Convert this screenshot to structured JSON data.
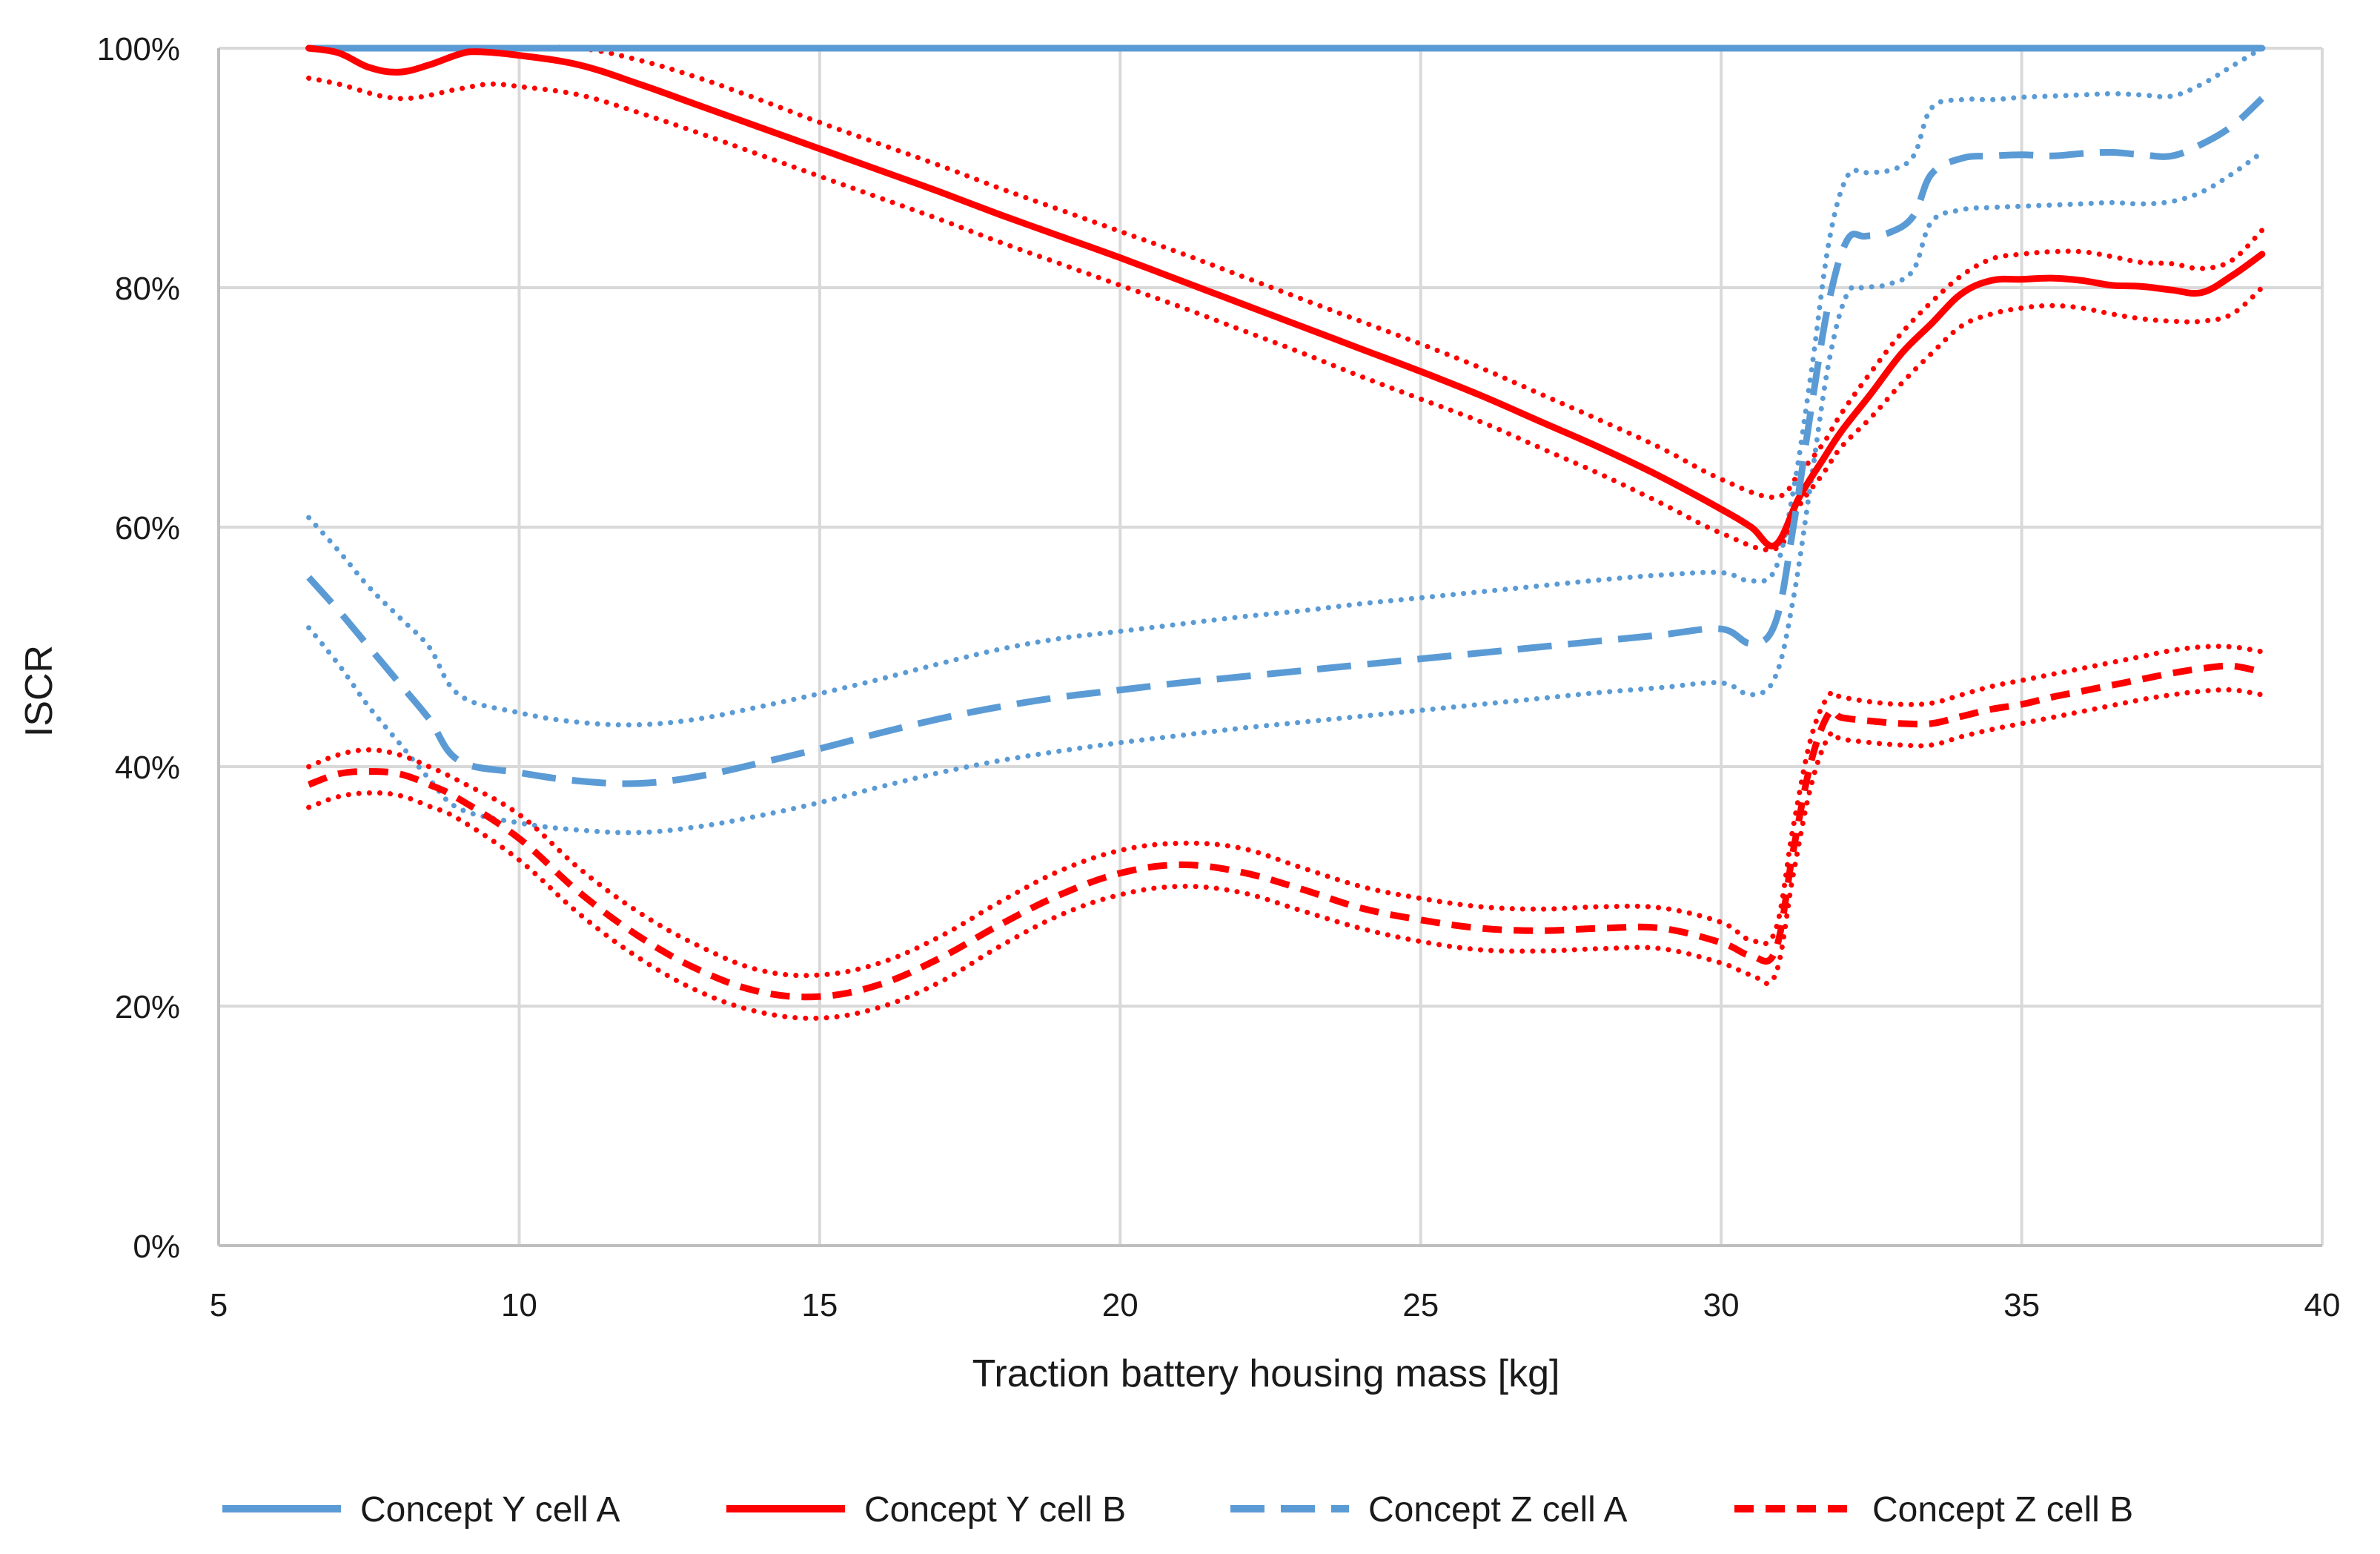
{
  "chart_data": {
    "type": "line",
    "title": "",
    "xlabel": "Traction battery housing mass [kg]",
    "ylabel": "ISCR",
    "xlim": [
      5,
      40
    ],
    "ylim": [
      0,
      100
    ],
    "x_ticks": [
      5,
      10,
      15,
      20,
      25,
      30,
      35,
      40
    ],
    "y_ticks": [
      0,
      20,
      40,
      60,
      80,
      100
    ],
    "x_tick_labels": [
      "5",
      "10",
      "15",
      "20",
      "25",
      "30",
      "35",
      "40"
    ],
    "y_tick_labels": [
      "0%",
      "20%",
      "40%",
      "60%",
      "80%",
      "100%"
    ],
    "grid": true,
    "legend_position": "bottom",
    "legend": [
      "Concept Y cell A",
      "Concept Y cell B",
      "Concept Z cell A",
      "Concept Z cell B"
    ],
    "colors": {
      "blue": "#5b9bd5",
      "red": "#ff0000",
      "grid": "#d9d9d9",
      "axis": "#bfbfbf"
    },
    "series": [
      {
        "name": "Concept Y cell A",
        "color": "#5b9bd5",
        "style": "solid",
        "legend": true,
        "x": [
          6.5,
          39
        ],
        "y": [
          100,
          100
        ]
      },
      {
        "name": "Concept Y cell B",
        "color": "#ff0000",
        "style": "solid",
        "legend": true,
        "x": [
          6.5,
          7,
          7.5,
          8,
          8.5,
          9,
          9.3,
          10,
          11,
          12,
          13,
          14,
          15,
          16,
          17,
          18,
          19,
          20,
          21,
          22,
          23,
          24,
          25,
          26,
          27,
          28,
          29,
          30,
          30.5,
          30.9,
          31.3,
          31.7,
          32,
          32.5,
          33,
          33.5,
          34,
          34.5,
          35,
          35.5,
          36,
          36.5,
          37,
          37.5,
          38,
          38.5,
          39
        ],
        "y": [
          100,
          99.6,
          98.4,
          98,
          98.6,
          99.5,
          99.7,
          99.4,
          98.6,
          97,
          95.2,
          93.4,
          91.6,
          89.8,
          88,
          86.1,
          84.3,
          82.5,
          80.6,
          78.7,
          76.8,
          74.9,
          73,
          71,
          68.8,
          66.6,
          64.2,
          61.5,
          60,
          58.5,
          62.5,
          65.7,
          68,
          71.2,
          74.5,
          77,
          79.5,
          80.6,
          80.7,
          80.8,
          80.6,
          80.2,
          80.1,
          79.8,
          79.6,
          81,
          82.8
        ]
      },
      {
        "name": "Concept Y cell B upper",
        "color": "#ff0000",
        "style": "dotted",
        "legend": false,
        "x": [
          6.5,
          8,
          9,
          10,
          11,
          12,
          13,
          14,
          15,
          16,
          17,
          18,
          19,
          20,
          21,
          22,
          23,
          24,
          25,
          26,
          27,
          28,
          29,
          30,
          30.9,
          31.3,
          31.7,
          32,
          32.5,
          33,
          33.5,
          34,
          34.5,
          35,
          35.5,
          36,
          36.5,
          37,
          37.5,
          38,
          38.5,
          39
        ],
        "y": [
          100,
          100,
          100,
          100,
          100,
          99,
          97.5,
          95.7,
          93.8,
          92,
          90.2,
          88.3,
          86.5,
          84.7,
          82.9,
          81,
          79.1,
          77.2,
          75.3,
          73.3,
          71.1,
          68.9,
          66.6,
          64,
          62.5,
          64.5,
          67,
          69.5,
          73,
          76.2,
          78.8,
          81,
          82.4,
          82.8,
          83,
          83,
          82.6,
          82.1,
          82,
          81.6,
          82.3,
          84.8
        ]
      },
      {
        "name": "Concept Y cell B lower",
        "color": "#ff0000",
        "style": "dotted",
        "legend": false,
        "x": [
          6.5,
          7,
          8,
          9,
          9.5,
          10,
          11,
          12,
          13,
          14,
          15,
          16,
          17,
          18,
          19,
          20,
          21,
          22,
          23,
          24,
          25,
          26,
          27,
          28,
          29,
          30,
          30.9,
          31.3,
          31.7,
          32,
          32.5,
          33,
          33.5,
          34,
          34.5,
          35,
          35.5,
          36,
          36.5,
          37,
          37.5,
          38,
          38.5,
          39
        ],
        "y": [
          97.5,
          97,
          95.8,
          96.6,
          97,
          96.8,
          96.1,
          94.6,
          92.9,
          91.1,
          89.3,
          87.5,
          85.7,
          83.8,
          82,
          80.2,
          78.4,
          76.5,
          74.6,
          72.6,
          70.7,
          68.8,
          66.6,
          64.4,
          62,
          59.5,
          58.2,
          61.8,
          64.5,
          66.7,
          69.2,
          72,
          74.5,
          76.8,
          77.8,
          78.3,
          78.5,
          78.3,
          77.8,
          77.4,
          77.2,
          77.2,
          77.8,
          80
        ]
      },
      {
        "name": "Concept Z cell A",
        "color": "#5b9bd5",
        "style": "dashed",
        "legend": true,
        "x": [
          6.5,
          7,
          7.5,
          8,
          8.5,
          9,
          10,
          11,
          12,
          13,
          14,
          15,
          16,
          17,
          18,
          19,
          20,
          21,
          22,
          23,
          24,
          25,
          26,
          27,
          28,
          29,
          30,
          30.5,
          30.9,
          31.2,
          31.5,
          31.8,
          32.1,
          32.4,
          32.8,
          33.2,
          33.5,
          34,
          34.5,
          35,
          35.5,
          36,
          36.5,
          37,
          37.5,
          38,
          38.5,
          39
        ],
        "y": [
          55.8,
          53,
          50,
          47,
          44,
          40.5,
          39.5,
          38.8,
          38.6,
          39.2,
          40.3,
          41.5,
          42.8,
          44,
          45,
          45.8,
          46.4,
          47,
          47.5,
          48,
          48.5,
          49,
          49.5,
          50,
          50.5,
          51,
          51.5,
          50.3,
          52,
          60,
          70,
          79,
          84,
          84.3,
          84.6,
          86,
          89.5,
          90.8,
          91,
          91.1,
          91,
          91.2,
          91.3,
          91.1,
          91,
          92,
          93.5,
          95.8
        ]
      },
      {
        "name": "Concept Z cell A upper",
        "color": "#5b9bd5",
        "style": "dotted",
        "legend": false,
        "x": [
          6.5,
          7,
          7.5,
          8,
          8.5,
          9,
          10,
          11,
          12,
          13,
          14,
          15,
          16,
          17,
          18,
          19,
          20,
          21,
          22,
          23,
          24,
          25,
          26,
          27,
          28,
          29,
          30,
          30.5,
          30.9,
          31.2,
          31.5,
          31.8,
          32.1,
          32.4,
          32.8,
          33.2,
          33.5,
          34,
          34.5,
          35,
          35.5,
          36,
          36.5,
          37,
          37.5,
          38,
          38.5,
          39
        ],
        "y": [
          60.8,
          58,
          55,
          52.5,
          50,
          46,
          44.5,
          43.7,
          43.5,
          44,
          45,
          46.1,
          47.3,
          48.6,
          49.8,
          50.7,
          51.3,
          51.9,
          52.5,
          53,
          53.6,
          54.1,
          54.6,
          55.1,
          55.6,
          56,
          56.2,
          55.5,
          56.5,
          63,
          73,
          84,
          89.3,
          89.6,
          89.8,
          91,
          95,
          95.7,
          95.7,
          95.9,
          96,
          96.1,
          96.2,
          96.1,
          96,
          97,
          98.5,
          100
        ]
      },
      {
        "name": "Concept Z cell A lower",
        "color": "#5b9bd5",
        "style": "dotted",
        "legend": false,
        "x": [
          6.5,
          7,
          7.5,
          8,
          8.5,
          9,
          10,
          11,
          12,
          13,
          14,
          15,
          16,
          17,
          18,
          19,
          20,
          21,
          22,
          23,
          24,
          25,
          26,
          27,
          28,
          29,
          30,
          30.5,
          30.9,
          31.2,
          31.5,
          31.8,
          32.1,
          32.4,
          32.8,
          33.2,
          33.5,
          34,
          34.5,
          35,
          35.5,
          36,
          36.5,
          37,
          37.5,
          38,
          38.5,
          39
        ],
        "y": [
          51.6,
          48.5,
          45,
          42,
          39,
          36.5,
          35.3,
          34.7,
          34.5,
          35,
          35.9,
          37,
          38.3,
          39.5,
          40.5,
          41.3,
          42,
          42.6,
          43.2,
          43.7,
          44.2,
          44.7,
          45.2,
          45.7,
          46.2,
          46.6,
          47,
          46,
          47.5,
          54,
          64,
          74,
          79.5,
          80,
          80.3,
          81.5,
          85.5,
          86.5,
          86.7,
          86.8,
          86.9,
          87,
          87.1,
          87,
          87.2,
          88,
          89.5,
          91.3
        ]
      },
      {
        "name": "Concept Z cell B",
        "color": "#ff0000",
        "style": "dashed",
        "legend": true,
        "x": [
          6.5,
          7,
          7.5,
          8,
          8.5,
          9,
          10,
          11,
          12,
          13,
          14,
          15,
          16,
          17,
          18,
          19,
          20,
          21,
          22,
          23,
          24,
          25,
          26,
          27,
          28,
          29,
          30,
          30.5,
          30.9,
          31.2,
          31.5,
          31.8,
          32,
          32.5,
          33,
          33.5,
          34,
          34.5,
          35,
          35.5,
          36,
          36.5,
          37,
          37.5,
          38,
          38.5,
          39
        ],
        "y": [
          38.5,
          39.4,
          39.6,
          39.4,
          38.5,
          37.3,
          34,
          29.5,
          25.8,
          23,
          21.2,
          20.8,
          21.8,
          24,
          26.8,
          29.3,
          31.1,
          31.8,
          31.2,
          29.8,
          28.2,
          27.2,
          26.5,
          26.3,
          26.5,
          26.5,
          25.3,
          24.2,
          24.6,
          33,
          40.5,
          44.5,
          44.1,
          43.8,
          43.6,
          43.6,
          44.2,
          44.8,
          45.2,
          45.8,
          46.3,
          46.8,
          47.3,
          47.8,
          48.2,
          48.4,
          47.9
        ]
      },
      {
        "name": "Concept Z cell B upper",
        "color": "#ff0000",
        "style": "dotted",
        "legend": false,
        "x": [
          6.5,
          7,
          7.5,
          8,
          8.5,
          9,
          10,
          11,
          12,
          13,
          14,
          15,
          16,
          17,
          18,
          19,
          20,
          21,
          22,
          23,
          24,
          25,
          26,
          27,
          28,
          29,
          30,
          30.5,
          30.9,
          31.2,
          31.5,
          31.8,
          32,
          32.5,
          33,
          33.5,
          34,
          34.5,
          35,
          35.5,
          36,
          36.5,
          37,
          37.5,
          38,
          38.5,
          39
        ],
        "y": [
          40,
          41,
          41.4,
          41,
          40,
          38.8,
          36,
          31.5,
          27.8,
          25,
          23,
          22.6,
          23.6,
          25.8,
          28.7,
          31.3,
          33,
          33.6,
          33.2,
          31.6,
          30,
          29,
          28.3,
          28.1,
          28.3,
          28.2,
          27,
          25.5,
          26.3,
          35,
          42.5,
          46,
          45.8,
          45.4,
          45.2,
          45.3,
          46,
          46.7,
          47.2,
          47.7,
          48.2,
          48.7,
          49.2,
          49.7,
          50,
          50,
          49.6
        ]
      },
      {
        "name": "Concept Z cell B lower",
        "color": "#ff0000",
        "style": "dotted",
        "legend": false,
        "x": [
          6.5,
          7,
          7.5,
          8,
          8.5,
          9,
          10,
          11,
          12,
          13,
          14,
          15,
          16,
          17,
          18,
          19,
          20,
          21,
          22,
          23,
          24,
          25,
          26,
          27,
          28,
          29,
          30,
          30.5,
          30.9,
          31.2,
          31.5,
          31.8,
          32,
          32.5,
          33,
          33.5,
          34,
          34.5,
          35,
          35.5,
          36,
          36.5,
          37,
          37.5,
          38,
          38.5,
          39
        ],
        "y": [
          36.6,
          37.5,
          37.8,
          37.6,
          36.7,
          35.6,
          32.2,
          27.7,
          24,
          21.2,
          19.5,
          19,
          19.9,
          22,
          25,
          27.6,
          29.3,
          30,
          29.5,
          28,
          26.5,
          25.4,
          24.7,
          24.6,
          24.8,
          24.8,
          23.6,
          22.6,
          22.6,
          31,
          38.5,
          42.6,
          42.3,
          42,
          41.8,
          41.8,
          42.5,
          43.1,
          43.6,
          44.1,
          44.6,
          45.1,
          45.6,
          46,
          46.3,
          46.4,
          46
        ]
      }
    ]
  }
}
